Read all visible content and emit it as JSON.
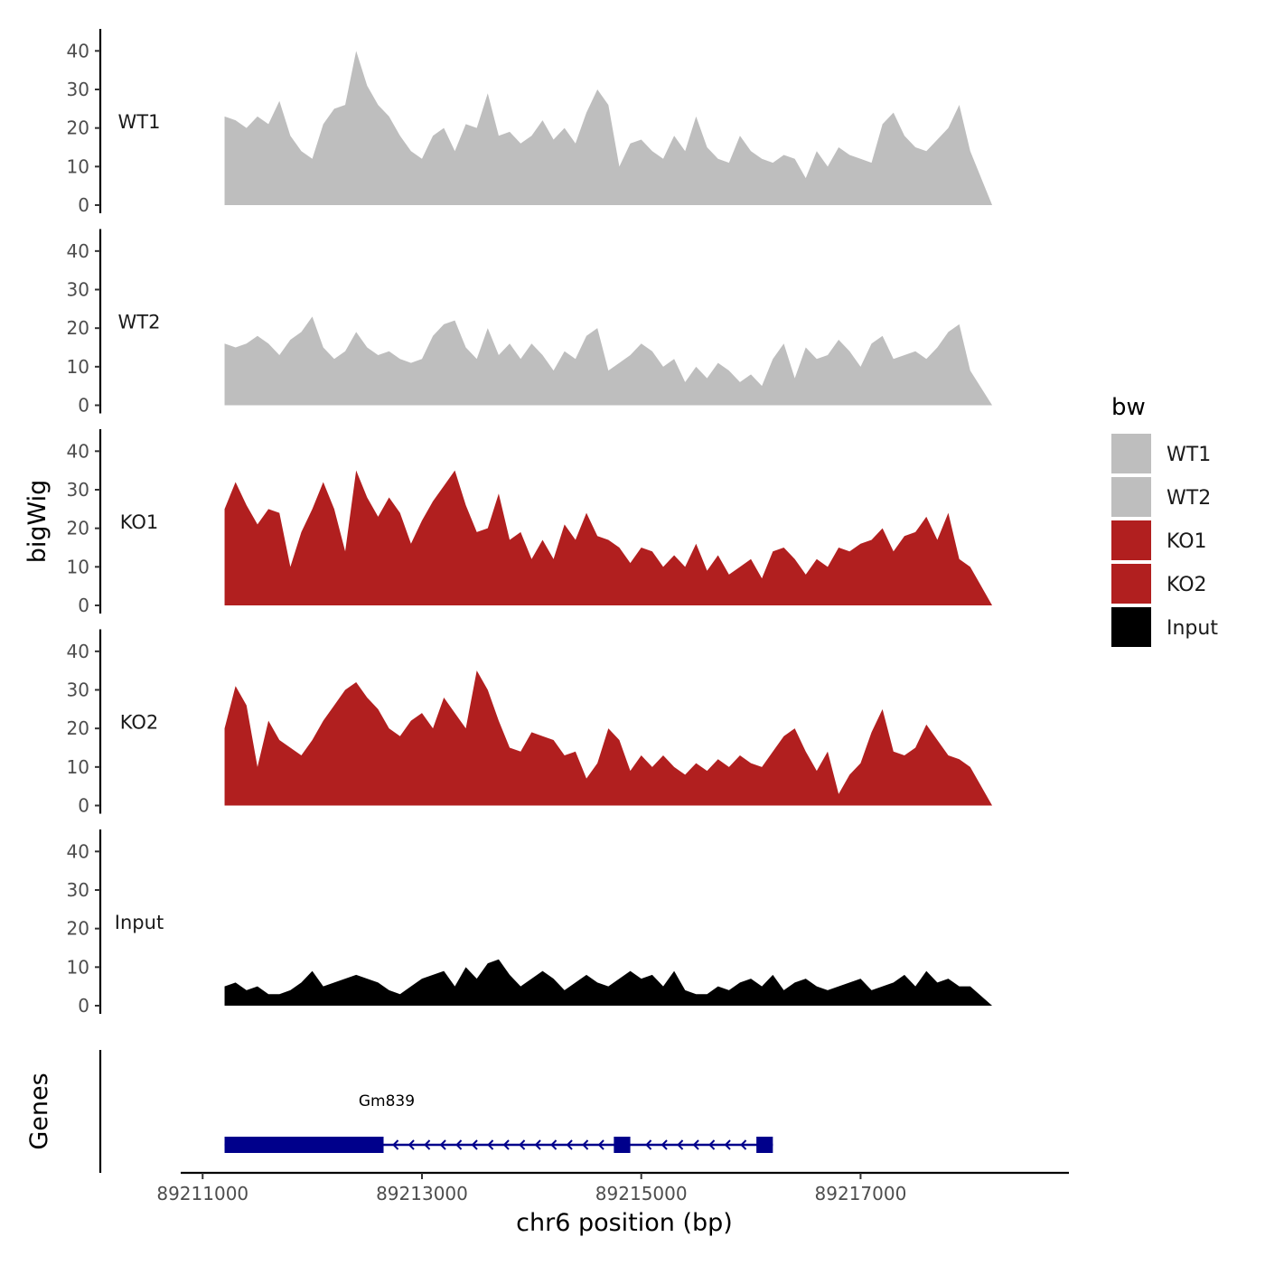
{
  "chart_data": {
    "type": "area",
    "ylabel": "bigWig",
    "xlabel": "chr6 position (bp)",
    "genes_label": "Genes",
    "y_ticks": [
      "0",
      "10",
      "20",
      "30",
      "40"
    ],
    "ylim": [
      0,
      45
    ],
    "xlim": [
      89210800,
      89218900
    ],
    "x_ticks": [
      {
        "value": 89211000,
        "label": "89211000"
      },
      {
        "value": 89213000,
        "label": "89213000"
      },
      {
        "value": 89215000,
        "label": "89215000"
      },
      {
        "value": 89217000,
        "label": "89217000"
      }
    ],
    "x": [
      89211200,
      89211300,
      89211400,
      89211500,
      89211600,
      89211700,
      89211800,
      89211900,
      89212000,
      89212100,
      89212200,
      89212300,
      89212400,
      89212500,
      89212600,
      89212700,
      89212800,
      89212900,
      89213000,
      89213100,
      89213200,
      89213300,
      89213400,
      89213500,
      89213600,
      89213700,
      89213800,
      89213900,
      89214000,
      89214100,
      89214200,
      89214300,
      89214400,
      89214500,
      89214600,
      89214700,
      89214800,
      89214900,
      89215000,
      89215100,
      89215200,
      89215300,
      89215400,
      89215500,
      89215600,
      89215700,
      89215800,
      89215900,
      89216000,
      89216100,
      89216200,
      89216300,
      89216400,
      89216500,
      89216600,
      89216700,
      89216800,
      89216900,
      89217000,
      89217100,
      89217200,
      89217300,
      89217400,
      89217500,
      89217600,
      89217700,
      89217800,
      89217900,
      89218000,
      89218200
    ],
    "series": [
      {
        "name": "WT1",
        "color": "#bebebe",
        "values": [
          23,
          22,
          20,
          23,
          21,
          27,
          18,
          14,
          12,
          21,
          25,
          26,
          40,
          31,
          26,
          23,
          18,
          14,
          12,
          18,
          20,
          14,
          21,
          20,
          29,
          18,
          19,
          16,
          18,
          22,
          17,
          20,
          16,
          24,
          30,
          26,
          10,
          16,
          17,
          14,
          12,
          18,
          14,
          23,
          15,
          12,
          11,
          18,
          14,
          12,
          11,
          13,
          12,
          7,
          14,
          10,
          15,
          13,
          12,
          11,
          21,
          24,
          18,
          15,
          14,
          17,
          20,
          26,
          14,
          0
        ]
      },
      {
        "name": "WT2",
        "color": "#bebebe",
        "values": [
          16,
          15,
          16,
          18,
          16,
          13,
          17,
          19,
          23,
          15,
          12,
          14,
          19,
          15,
          13,
          14,
          12,
          11,
          12,
          18,
          21,
          22,
          15,
          12,
          20,
          13,
          16,
          12,
          16,
          13,
          9,
          14,
          12,
          18,
          20,
          9,
          11,
          13,
          16,
          14,
          10,
          12,
          6,
          10,
          7,
          11,
          9,
          6,
          8,
          5,
          12,
          16,
          7,
          15,
          12,
          13,
          17,
          14,
          10,
          16,
          18,
          12,
          13,
          14,
          12,
          15,
          19,
          21,
          9,
          0
        ]
      },
      {
        "name": "KO1",
        "color": "#b11f1f",
        "values": [
          25,
          32,
          26,
          21,
          25,
          24,
          10,
          19,
          25,
          32,
          25,
          14,
          35,
          28,
          23,
          28,
          24,
          16,
          22,
          27,
          31,
          35,
          26,
          19,
          20,
          29,
          17,
          19,
          12,
          17,
          12,
          21,
          17,
          24,
          18,
          17,
          15,
          11,
          15,
          14,
          10,
          13,
          10,
          16,
          9,
          13,
          8,
          10,
          12,
          7,
          14,
          15,
          12,
          8,
          12,
          10,
          15,
          14,
          16,
          17,
          20,
          14,
          18,
          19,
          23,
          17,
          24,
          12,
          10,
          0
        ]
      },
      {
        "name": "KO2",
        "color": "#b11f1f",
        "values": [
          20,
          31,
          26,
          10,
          22,
          17,
          15,
          13,
          17,
          22,
          26,
          30,
          32,
          28,
          25,
          20,
          18,
          22,
          24,
          20,
          28,
          24,
          20,
          35,
          30,
          22,
          15,
          14,
          19,
          18,
          17,
          13,
          14,
          7,
          11,
          20,
          17,
          9,
          13,
          10,
          13,
          10,
          8,
          11,
          9,
          12,
          10,
          13,
          11,
          10,
          14,
          18,
          20,
          14,
          9,
          14,
          3,
          8,
          11,
          19,
          25,
          14,
          13,
          15,
          21,
          17,
          13,
          12,
          10,
          0
        ]
      },
      {
        "name": "Input",
        "color": "#000000",
        "values": [
          5,
          6,
          4,
          5,
          3,
          3,
          4,
          6,
          9,
          5,
          6,
          7,
          8,
          7,
          6,
          4,
          3,
          5,
          7,
          8,
          9,
          5,
          10,
          7,
          11,
          12,
          8,
          5,
          7,
          9,
          7,
          4,
          6,
          8,
          6,
          5,
          7,
          9,
          7,
          8,
          5,
          9,
          4,
          3,
          3,
          5,
          4,
          6,
          7,
          5,
          8,
          4,
          6,
          7,
          5,
          4,
          5,
          6,
          7,
          4,
          5,
          6,
          8,
          5,
          9,
          6,
          7,
          5,
          5,
          0
        ]
      }
    ],
    "legend": {
      "title": "bw",
      "position": "right"
    },
    "gene": {
      "name": "Gm839",
      "color": "#00008b",
      "start": 89211200,
      "end": 89216200,
      "strand": "-",
      "exons": [
        {
          "start": 89211200,
          "end": 89212650
        },
        {
          "start": 89214750,
          "end": 89214900
        },
        {
          "start": 89216050,
          "end": 89216200
        }
      ]
    }
  }
}
